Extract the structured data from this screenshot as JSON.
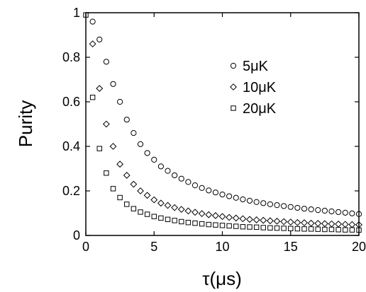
{
  "chart_data": {
    "type": "scatter",
    "title": "",
    "xlabel": "τ(μs)",
    "ylabel": "Purity",
    "xlim": [
      0,
      20
    ],
    "ylim": [
      0,
      1
    ],
    "xticks": [
      0,
      5,
      10,
      15,
      20
    ],
    "xtick_labels": [
      "0",
      "5",
      "10",
      "15",
      "20"
    ],
    "yticks": [
      0,
      0.2,
      0.4,
      0.6,
      0.8,
      1
    ],
    "ytick_labels": [
      "0",
      "0.2",
      "0.4",
      "0.6",
      "0.8",
      "1"
    ],
    "grid": false,
    "legend_position": "upper-right",
    "series": [
      {
        "name": "5μK",
        "marker": "circle",
        "x": [
          0.5,
          1.0,
          1.5,
          2.0,
          2.5,
          3.0,
          3.5,
          4.0,
          4.5,
          5.0,
          5.5,
          6.0,
          6.5,
          7.0,
          7.5,
          8.0,
          8.5,
          9.0,
          9.5,
          10.0,
          10.5,
          11.0,
          11.5,
          12.0,
          12.5,
          13.0,
          13.5,
          14.0,
          14.5,
          15.0,
          15.5,
          16.0,
          16.5,
          17.0,
          17.5,
          18.0,
          18.5,
          19.0,
          19.5,
          20.0
        ],
        "y": [
          0.96,
          0.88,
          0.78,
          0.68,
          0.6,
          0.52,
          0.46,
          0.41,
          0.37,
          0.34,
          0.31,
          0.29,
          0.27,
          0.255,
          0.24,
          0.225,
          0.213,
          0.202,
          0.193,
          0.184,
          0.176,
          0.169,
          0.162,
          0.156,
          0.15,
          0.145,
          0.14,
          0.136,
          0.132,
          0.128,
          0.124,
          0.12,
          0.117,
          0.114,
          0.111,
          0.108,
          0.105,
          0.102,
          0.099,
          0.096
        ]
      },
      {
        "name": "10μK",
        "marker": "diamond",
        "x": [
          0.5,
          1.0,
          1.5,
          2.0,
          2.5,
          3.0,
          3.5,
          4.0,
          4.5,
          5.0,
          5.5,
          6.0,
          6.5,
          7.0,
          7.5,
          8.0,
          8.5,
          9.0,
          9.5,
          10.0,
          10.5,
          11.0,
          11.5,
          12.0,
          12.5,
          13.0,
          13.5,
          14.0,
          14.5,
          15.0,
          15.5,
          16.0,
          16.5,
          17.0,
          17.5,
          18.0,
          18.5,
          19.0,
          19.5,
          20.0
        ],
        "y": [
          0.86,
          0.66,
          0.5,
          0.4,
          0.32,
          0.27,
          0.23,
          0.2,
          0.18,
          0.16,
          0.145,
          0.135,
          0.125,
          0.117,
          0.11,
          0.104,
          0.098,
          0.093,
          0.089,
          0.085,
          0.081,
          0.078,
          0.075,
          0.072,
          0.07,
          0.068,
          0.066,
          0.064,
          0.062,
          0.06,
          0.058,
          0.057,
          0.055,
          0.054,
          0.053,
          0.052,
          0.051,
          0.05,
          0.049,
          0.048
        ]
      },
      {
        "name": "20μK",
        "marker": "square",
        "x": [
          0.0,
          0.5,
          1.0,
          1.5,
          2.0,
          2.5,
          3.0,
          3.5,
          4.0,
          4.5,
          5.0,
          5.5,
          6.0,
          6.5,
          7.0,
          7.5,
          8.0,
          8.5,
          9.0,
          9.5,
          10.0,
          10.5,
          11.0,
          11.5,
          12.0,
          12.5,
          13.0,
          13.5,
          14.0,
          14.5,
          15.0,
          15.5,
          16.0,
          16.5,
          17.0,
          17.5,
          18.0,
          18.5,
          19.0,
          19.5,
          20.0
        ],
        "y": [
          0.99,
          0.62,
          0.39,
          0.28,
          0.21,
          0.17,
          0.14,
          0.12,
          0.105,
          0.095,
          0.085,
          0.078,
          0.072,
          0.067,
          0.062,
          0.058,
          0.055,
          0.052,
          0.049,
          0.047,
          0.045,
          0.043,
          0.041,
          0.039,
          0.038,
          0.037,
          0.035,
          0.034,
          0.033,
          0.032,
          0.031,
          0.03,
          0.029,
          0.029,
          0.028,
          0.027,
          0.027,
          0.026,
          0.025,
          0.025,
          0.024
        ]
      }
    ]
  }
}
